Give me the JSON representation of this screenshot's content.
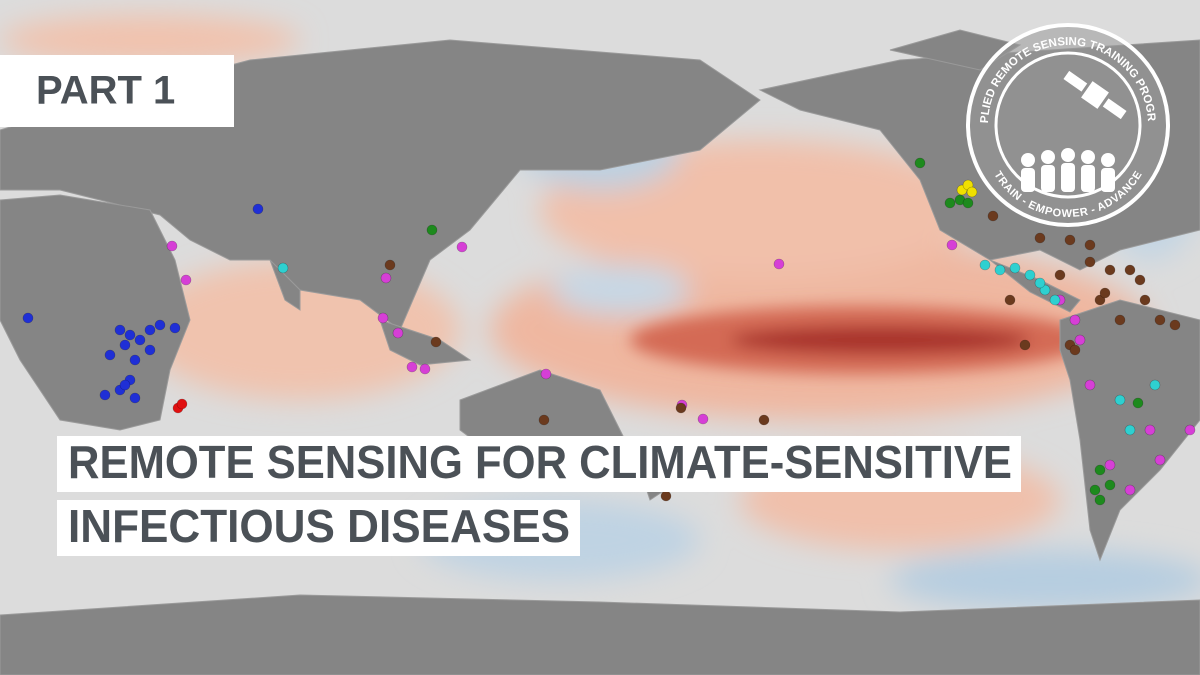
{
  "badge": {
    "text": "PART 1"
  },
  "title": {
    "lines": [
      "REMOTE SENSING FOR CLIMATE-SENSITIVE",
      "INFECTIOUS DISEASES"
    ]
  },
  "logo": {
    "program": "APPLIED REMOTE SENSING TRAINING PROGRAM",
    "motto": "TRAIN - EMPOWER - ADVANCE"
  }
}
